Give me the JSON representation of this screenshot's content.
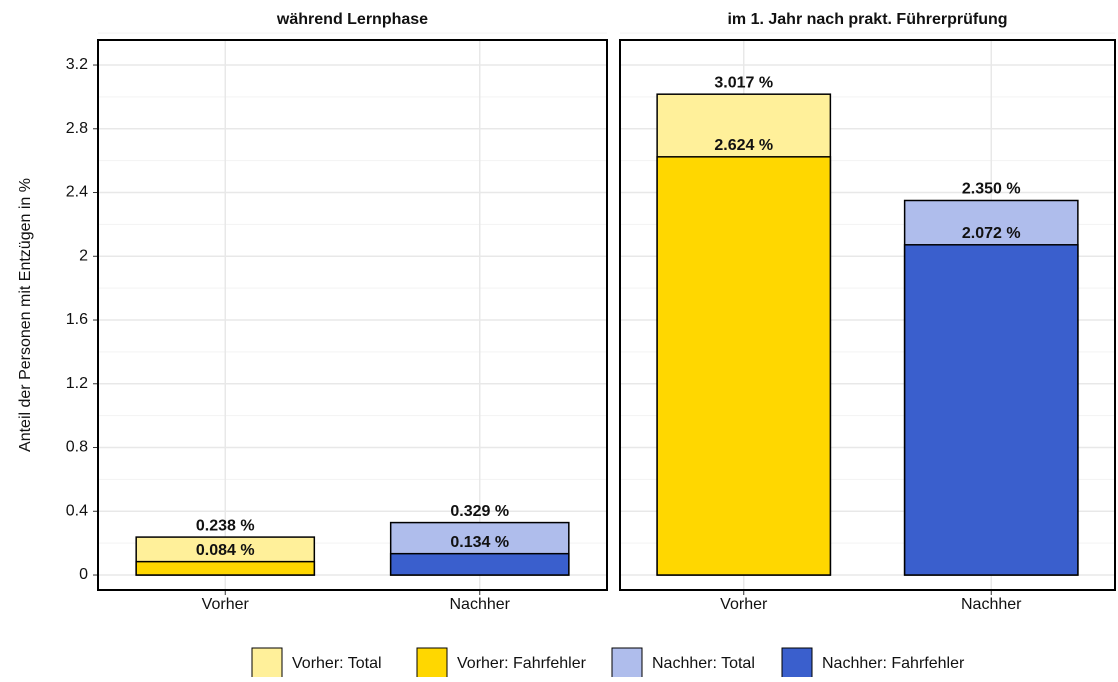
{
  "chart_data": [
    {
      "type": "bar",
      "title": "während Lernphase",
      "ylabel": "Anteil der Personen mit Entzügen in %",
      "categories": [
        "Vorher",
        "Nachher"
      ],
      "ylim": [
        -0.094,
        3.357
      ],
      "yticks": [
        0,
        0.4,
        0.8,
        1.2,
        1.6,
        2,
        2.4,
        2.8,
        3.2
      ],
      "grid": true,
      "series": [
        {
          "name": "Vorher: Total",
          "color": "#fff09a",
          "values": [
            0.238,
            null
          ],
          "value_labels": [
            "0.238 %",
            null
          ]
        },
        {
          "name": "Vorher: Fahrfehler",
          "color": "#ffd700",
          "values": [
            0.084,
            null
          ],
          "value_labels": [
            "0.084 %",
            null
          ]
        },
        {
          "name": "Nachher: Total",
          "color": "#afbdec",
          "values": [
            null,
            0.329
          ],
          "value_labels": [
            null,
            "0.329 %"
          ]
        },
        {
          "name": "Nachher: Fahrfehler",
          "color": "#3a5fcd",
          "values": [
            null,
            0.134
          ],
          "value_labels": [
            null,
            "0.134 %"
          ]
        }
      ]
    },
    {
      "type": "bar",
      "title": "im 1. Jahr nach prakt. Führerprüfung",
      "categories": [
        "Vorher",
        "Nachher"
      ],
      "ylim": [
        -0.094,
        3.357
      ],
      "yticks": [
        0,
        0.4,
        0.8,
        1.2,
        1.6,
        2,
        2.4,
        2.8,
        3.2
      ],
      "grid": true,
      "series": [
        {
          "values": [
            3.017,
            null
          ],
          "value_labels": [
            "3.017 %",
            null
          ]
        },
        {
          "values": [
            2.624,
            null
          ],
          "value_labels": [
            "2.624 %",
            null
          ]
        },
        {
          "values": [
            null,
            2.35
          ],
          "value_labels": [
            null,
            "2.350 %"
          ]
        },
        {
          "values": [
            null,
            2.072
          ],
          "value_labels": [
            null,
            "2.072 %"
          ]
        }
      ]
    }
  ]
}
